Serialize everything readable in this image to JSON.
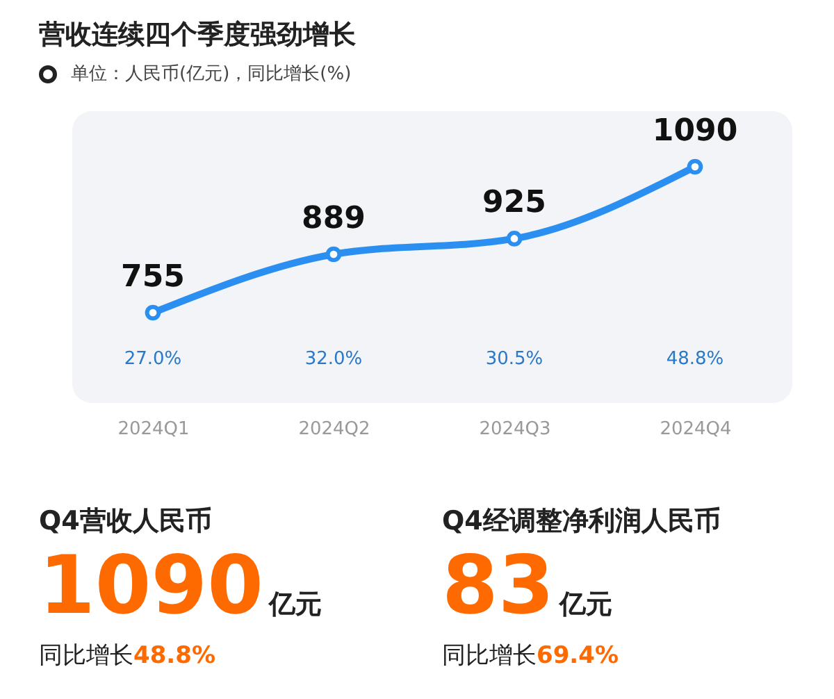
{
  "chart_data": {
    "type": "line",
    "title": "营收连续四个季度强劲增长",
    "subtitle": "单位：人民币(亿元)，同比增长(%)",
    "categories": [
      "2024Q1",
      "2024Q2",
      "2024Q3",
      "2024Q4"
    ],
    "series": [
      {
        "color": "#2a8ff0",
        "values": [
          755,
          889,
          925,
          1090
        ]
      }
    ],
    "tick_labels": "x",
    "grid": false,
    "marker": "circle",
    "line_style": "solid",
    "data_labels": true,
    "annotations": [
      "27.0%",
      "32.0%",
      "30.5%",
      "48.8%",
      "Q4营收人民币",
      "1090",
      "亿元",
      "同比增长",
      "48.8%",
      "Q4经调整净利润人民币",
      "83",
      "亿元",
      "同比增长",
      "69.4%"
    ]
  }
}
